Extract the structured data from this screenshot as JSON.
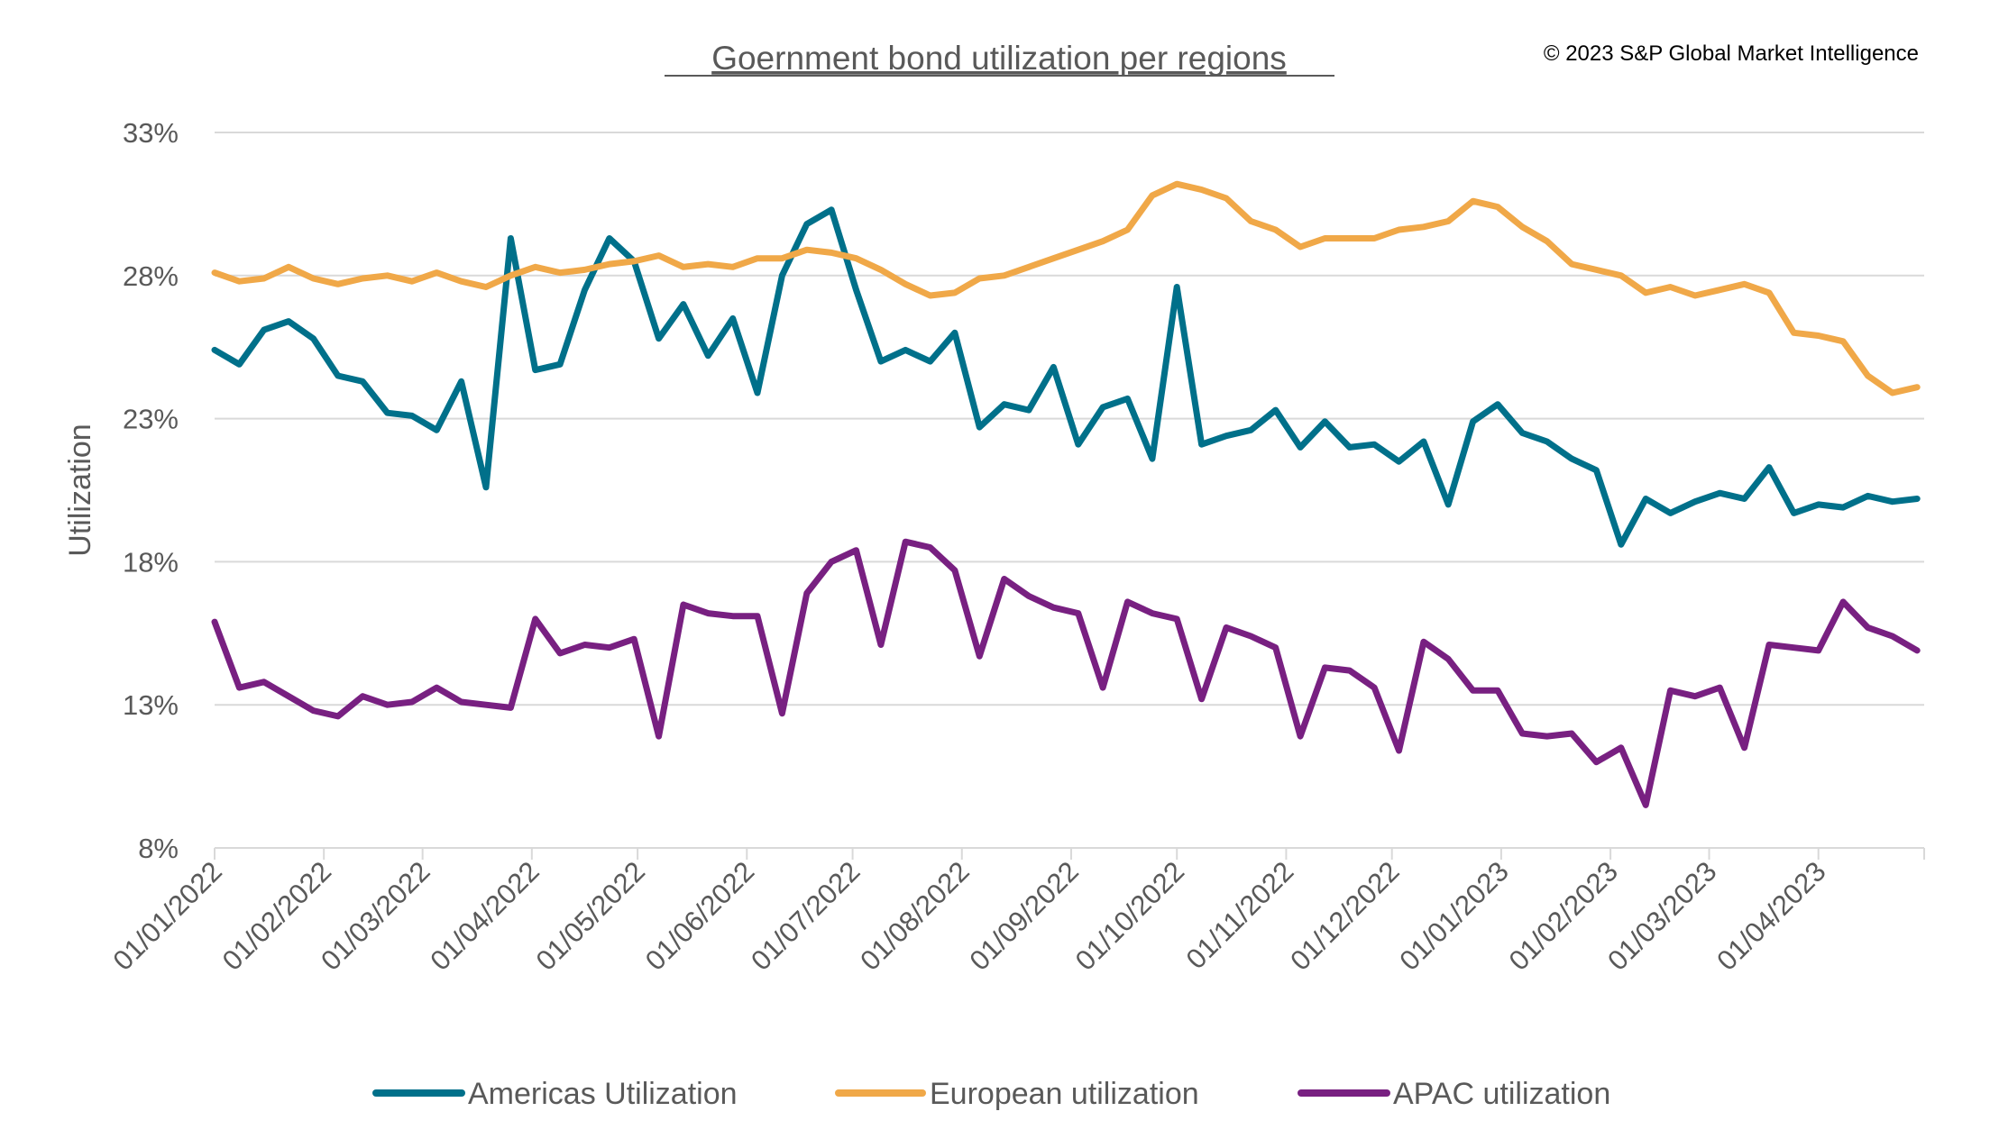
{
  "copyright": "© 2023 S&P Global Market Intelligence",
  "chart_data": {
    "type": "line",
    "title": "Goernment bond utilization per regions",
    "xlabel": "",
    "ylabel": "Utilization",
    "ylim": [
      8,
      33
    ],
    "yticks": [
      "8%",
      "13%",
      "18%",
      "23%",
      "28%",
      "33%"
    ],
    "ytick_values": [
      8,
      13,
      18,
      23,
      28,
      33
    ],
    "xlim": [
      "2022-01-01",
      "2023-05-01"
    ],
    "xticks": [
      "01/01/2022",
      "01/02/2022",
      "01/03/2022",
      "01/04/2022",
      "01/05/2022",
      "01/06/2022",
      "01/07/2022",
      "01/08/2022",
      "01/09/2022",
      "01/10/2022",
      "01/11/2022",
      "01/12/2022",
      "01/01/2023",
      "01/02/2023",
      "01/03/2023",
      "01/04/2023"
    ],
    "grid": "horizontal",
    "legend": "bottom",
    "x": [
      "2022-01-01",
      "2022-01-08",
      "2022-01-15",
      "2022-01-22",
      "2022-01-29",
      "2022-02-05",
      "2022-02-12",
      "2022-02-19",
      "2022-02-26",
      "2022-03-05",
      "2022-03-12",
      "2022-03-19",
      "2022-03-26",
      "2022-04-02",
      "2022-04-09",
      "2022-04-16",
      "2022-04-23",
      "2022-04-30",
      "2022-05-07",
      "2022-05-14",
      "2022-05-21",
      "2022-05-28",
      "2022-06-04",
      "2022-06-11",
      "2022-06-18",
      "2022-06-25",
      "2022-07-02",
      "2022-07-09",
      "2022-07-16",
      "2022-07-23",
      "2022-07-30",
      "2022-08-06",
      "2022-08-13",
      "2022-08-20",
      "2022-08-27",
      "2022-09-03",
      "2022-09-10",
      "2022-09-17",
      "2022-09-24",
      "2022-10-01",
      "2022-10-08",
      "2022-10-15",
      "2022-10-22",
      "2022-10-29",
      "2022-11-05",
      "2022-11-12",
      "2022-11-19",
      "2022-11-26",
      "2022-12-03",
      "2022-12-10",
      "2022-12-17",
      "2022-12-24",
      "2022-12-31",
      "2023-01-07",
      "2023-01-14",
      "2023-01-21",
      "2023-01-28",
      "2023-02-04",
      "2023-02-11",
      "2023-02-18",
      "2023-02-25",
      "2023-03-04",
      "2023-03-11",
      "2023-03-18",
      "2023-03-25",
      "2023-04-01",
      "2023-04-08",
      "2023-04-15",
      "2023-04-22",
      "2023-04-29"
    ],
    "series": [
      {
        "name": "Americas Utilization",
        "color": "#00708A",
        "values": [
          25.4,
          24.9,
          26.1,
          26.4,
          25.8,
          24.5,
          24.3,
          23.2,
          23.1,
          22.6,
          24.3,
          20.6,
          29.3,
          24.7,
          24.9,
          27.5,
          29.3,
          28.5,
          25.8,
          27.0,
          25.2,
          26.5,
          23.9,
          28.0,
          29.8,
          30.3,
          27.5,
          25.0,
          25.4,
          25.0,
          26.0,
          22.7,
          23.5,
          23.3,
          24.8,
          22.1,
          23.4,
          23.7,
          21.6,
          27.6,
          22.1,
          22.4,
          22.6,
          23.3,
          22.0,
          22.9,
          22.0,
          22.1,
          21.5,
          22.2,
          20.0,
          22.9,
          23.5,
          22.5,
          22.2,
          21.6,
          21.2,
          18.6,
          20.2,
          19.7,
          20.1,
          20.4,
          20.2,
          21.3,
          19.7,
          20.0,
          19.9,
          20.3,
          20.1,
          20.2
        ]
      },
      {
        "name": "European utilization",
        "color": "#F0A848",
        "values": [
          28.1,
          27.8,
          27.9,
          28.3,
          27.9,
          27.7,
          27.9,
          28.0,
          27.8,
          28.1,
          27.8,
          27.6,
          28.0,
          28.3,
          28.1,
          28.2,
          28.4,
          28.5,
          28.7,
          28.3,
          28.4,
          28.3,
          28.6,
          28.6,
          28.9,
          28.8,
          28.6,
          28.2,
          27.7,
          27.3,
          27.4,
          27.9,
          28.0,
          28.3,
          28.6,
          28.9,
          29.2,
          29.6,
          30.8,
          31.2,
          31.0,
          30.7,
          29.9,
          29.6,
          29.0,
          29.3,
          29.3,
          29.3,
          29.6,
          29.7,
          29.9,
          30.6,
          30.4,
          29.7,
          29.2,
          28.4,
          28.2,
          28.0,
          27.4,
          27.6,
          27.3,
          27.5,
          27.7,
          27.4,
          26.0,
          25.9,
          25.7,
          24.5,
          23.9,
          24.1
        ]
      },
      {
        "name": "APAC utilization",
        "color": "#782081",
        "values": [
          15.9,
          13.6,
          13.8,
          13.3,
          12.8,
          12.6,
          13.3,
          13.0,
          13.1,
          13.6,
          13.1,
          13.0,
          12.9,
          16.0,
          14.8,
          15.1,
          15.0,
          15.3,
          11.9,
          16.5,
          16.2,
          16.1,
          16.1,
          12.7,
          16.9,
          18.0,
          18.4,
          15.1,
          18.7,
          18.5,
          17.7,
          14.7,
          17.4,
          16.8,
          16.4,
          16.2,
          13.6,
          16.6,
          16.2,
          16.0,
          13.2,
          15.7,
          15.4,
          15.0,
          11.9,
          14.3,
          14.2,
          13.6,
          11.4,
          15.2,
          14.6,
          13.5,
          13.5,
          12.0,
          11.9,
          12.0,
          11.0,
          11.5,
          9.5,
          13.5,
          13.3,
          13.6,
          11.5,
          15.1,
          15.0,
          14.9,
          16.6,
          15.7,
          15.4,
          14.9
        ]
      }
    ]
  }
}
